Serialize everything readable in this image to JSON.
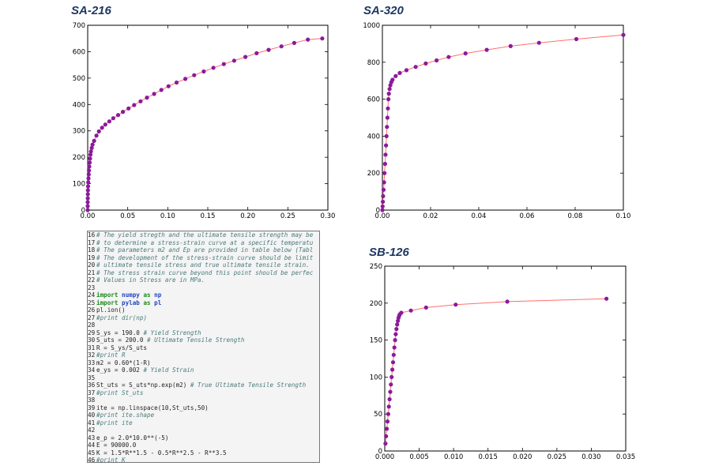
{
  "chart_data": [
    {
      "type": "line",
      "title": "SA-216",
      "xlim": [
        0,
        0.3
      ],
      "ylim": [
        0,
        700
      ],
      "xticks": [
        "0.00",
        "0.05",
        "0.10",
        "0.15",
        "0.20",
        "0.25",
        "0.30"
      ],
      "yticks": [
        "0",
        "100",
        "200",
        "300",
        "400",
        "500",
        "600",
        "700"
      ],
      "series": [
        {
          "line_color": "#ff6f6f",
          "marker_color": "#8b1a9b",
          "x": [
            0,
            0,
            0,
            0.0001,
            0.0002,
            0.0003,
            0.0005,
            0.0007,
            0.001,
            0.0013,
            0.0016,
            0.002,
            0.0025,
            0.003,
            0.0035,
            0.004,
            0.005,
            0.006,
            0.008,
            0.011,
            0.014,
            0.018,
            0.022,
            0.027,
            0.032,
            0.038,
            0.044,
            0.051,
            0.058,
            0.066,
            0.074,
            0.083,
            0.092,
            0.101,
            0.111,
            0.122,
            0.133,
            0.145,
            0.157,
            0.17,
            0.183,
            0.197,
            0.211,
            0.226,
            0.242,
            0.258,
            0.275,
            0.293
          ],
          "y": [
            0,
            15,
            30,
            45,
            60,
            75,
            90,
            105,
            120,
            135,
            150,
            165,
            180,
            195,
            210,
            222,
            235,
            248,
            262,
            282,
            298,
            312,
            324,
            336,
            348,
            360,
            372,
            385,
            398,
            412,
            426,
            440,
            455,
            469,
            483,
            497,
            511,
            525,
            539,
            553,
            566,
            580,
            594,
            607,
            620,
            633,
            646,
            650
          ]
        }
      ]
    },
    {
      "type": "line",
      "title": "SA-320",
      "xlim": [
        0,
        0.1
      ],
      "ylim": [
        0,
        1000
      ],
      "xticks": [
        "0.00",
        "0.02",
        "0.04",
        "0.06",
        "0.08",
        "0.10"
      ],
      "yticks": [
        "0",
        "200",
        "400",
        "600",
        "800",
        "1000"
      ],
      "series": [
        {
          "line_color": "#ff6f6f",
          "marker_color": "#8b1a9b",
          "x": [
            0,
            0.0001,
            0.0002,
            0.0003,
            0.0005,
            0.0007,
            0.0009,
            0.0011,
            0.0013,
            0.0015,
            0.0017,
            0.0019,
            0.0021,
            0.0023,
            0.0025,
            0.0027,
            0.003,
            0.0033,
            0.0037,
            0.0042,
            0.0055,
            0.0072,
            0.01,
            0.0138,
            0.018,
            0.0225,
            0.0275,
            0.0345,
            0.0433,
            0.0532,
            0.065,
            0.0805,
            0.1
          ],
          "y": [
            0,
            20,
            45,
            75,
            110,
            150,
            200,
            250,
            300,
            350,
            400,
            450,
            500,
            550,
            600,
            630,
            655,
            675,
            692,
            705,
            725,
            742,
            757,
            775,
            793,
            810,
            828,
            848,
            867,
            887,
            905,
            925,
            948
          ]
        }
      ]
    },
    {
      "type": "line",
      "title": "SB-126",
      "xlim": [
        0,
        0.035
      ],
      "ylim": [
        0,
        250
      ],
      "xticks": [
        "0.000",
        "0.005",
        "0.010",
        "0.015",
        "0.020",
        "0.025",
        "0.030",
        "0.035"
      ],
      "yticks": [
        "0",
        "50",
        "100",
        "150",
        "200",
        "250"
      ],
      "series": [
        {
          "line_color": "#ff6f6f",
          "marker_color": "#8b1a9b",
          "x": [
            0.0001,
            0.0002,
            0.0003,
            0.0004,
            0.0005,
            0.0006,
            0.0007,
            0.0008,
            0.0009,
            0.001,
            0.0011,
            0.0012,
            0.0013,
            0.0014,
            0.0015,
            0.0016,
            0.0017,
            0.0018,
            0.0019,
            0.002,
            0.0021,
            0.0022,
            0.0024,
            0.0038,
            0.006,
            0.0103,
            0.0178,
            0.0322
          ],
          "y": [
            10,
            20,
            30,
            40,
            50,
            60,
            70,
            80,
            90,
            100,
            110,
            120,
            130,
            140,
            150,
            158,
            165,
            171,
            176,
            180,
            183,
            185,
            187,
            190,
            194,
            198,
            202,
            206
          ]
        }
      ]
    }
  ],
  "code_panel": {
    "lines": [
      {
        "n": "16",
        "parts": [
          {
            "t": "# The yield stregth and the ultimate tensile strength may be",
            "c": "comment"
          }
        ]
      },
      {
        "n": "17",
        "parts": [
          {
            "t": "# to determine a stress-strain curve at a specific temperatu",
            "c": "comment"
          }
        ]
      },
      {
        "n": "18",
        "parts": [
          {
            "t": "# The parameters m2 and Ep are provided in table below (Tabl",
            "c": "comment"
          }
        ]
      },
      {
        "n": "19",
        "parts": [
          {
            "t": "# The development of the stress-strain curve should be limit",
            "c": "comment"
          }
        ]
      },
      {
        "n": "20",
        "parts": [
          {
            "t": "# ultimate tensile stress and true ultimate tensile strain.",
            "c": "comment"
          }
        ]
      },
      {
        "n": "21",
        "parts": [
          {
            "t": "# The stress strain curve beyond this point should be perfec",
            "c": "comment"
          }
        ]
      },
      {
        "n": "22",
        "parts": [
          {
            "t": "# Values in Stress are in MPa.",
            "c": "comment"
          }
        ]
      },
      {
        "n": "23",
        "parts": []
      },
      {
        "n": "24",
        "parts": [
          {
            "t": "import ",
            "c": "kw"
          },
          {
            "t": "numpy",
            "c": "mod"
          },
          {
            "t": " as ",
            "c": "kw"
          },
          {
            "t": "np",
            "c": "mod"
          }
        ]
      },
      {
        "n": "25",
        "parts": [
          {
            "t": "import ",
            "c": "kw"
          },
          {
            "t": "pylab",
            "c": "mod"
          },
          {
            "t": " as ",
            "c": "kw"
          },
          {
            "t": "pl",
            "c": "mod"
          }
        ]
      },
      {
        "n": "26",
        "parts": [
          {
            "t": "pl.ion()",
            "c": "plain"
          }
        ]
      },
      {
        "n": "27",
        "parts": [
          {
            "t": "#print dir(np)",
            "c": "comment"
          }
        ]
      },
      {
        "n": "28",
        "parts": []
      },
      {
        "n": "29",
        "parts": [
          {
            "t": "S_ys = 190.0 ",
            "c": "plain"
          },
          {
            "t": "# Yield Strength",
            "c": "comment"
          }
        ]
      },
      {
        "n": "30",
        "parts": [
          {
            "t": "S_uts = 200.0 ",
            "c": "plain"
          },
          {
            "t": "# Ultimate Tensile Strength",
            "c": "comment"
          }
        ]
      },
      {
        "n": "31",
        "parts": [
          {
            "t": "R = S_ys/S_uts",
            "c": "plain"
          }
        ]
      },
      {
        "n": "32",
        "parts": [
          {
            "t": "#print R",
            "c": "comment"
          }
        ]
      },
      {
        "n": "33",
        "parts": [
          {
            "t": "m2 = 0.60*(1-R)",
            "c": "plain"
          }
        ]
      },
      {
        "n": "34",
        "parts": [
          {
            "t": "e_ys = 0.002 ",
            "c": "plain"
          },
          {
            "t": "# Yield Strain",
            "c": "comment"
          }
        ]
      },
      {
        "n": "35",
        "parts": []
      },
      {
        "n": "36",
        "parts": [
          {
            "t": "St_uts = S_uts*np.exp(m2) ",
            "c": "plain"
          },
          {
            "t": "# True Ultimate Tensile Strength",
            "c": "comment"
          }
        ]
      },
      {
        "n": "37",
        "parts": [
          {
            "t": "#print St_uts",
            "c": "comment"
          }
        ]
      },
      {
        "n": "38",
        "parts": []
      },
      {
        "n": "39",
        "parts": [
          {
            "t": "ite = np.linspace(10,St_uts,50)",
            "c": "plain"
          }
        ]
      },
      {
        "n": "40",
        "parts": [
          {
            "t": "#print ite.shape",
            "c": "comment"
          }
        ]
      },
      {
        "n": "41",
        "parts": [
          {
            "t": "#print ite",
            "c": "comment"
          }
        ]
      },
      {
        "n": "42",
        "parts": []
      },
      {
        "n": "43",
        "parts": [
          {
            "t": "e_p = 2.0*10.0**(-5)",
            "c": "plain"
          }
        ]
      },
      {
        "n": "44",
        "parts": [
          {
            "t": "E = 90000.0",
            "c": "plain"
          }
        ]
      },
      {
        "n": "45",
        "parts": [
          {
            "t": "K = 1.5*R**1.5 - 0.5*R**2.5 - R**3.5",
            "c": "plain"
          }
        ]
      },
      {
        "n": "46",
        "parts": [
          {
            "t": "#print K",
            "c": "comment"
          }
        ]
      }
    ]
  }
}
